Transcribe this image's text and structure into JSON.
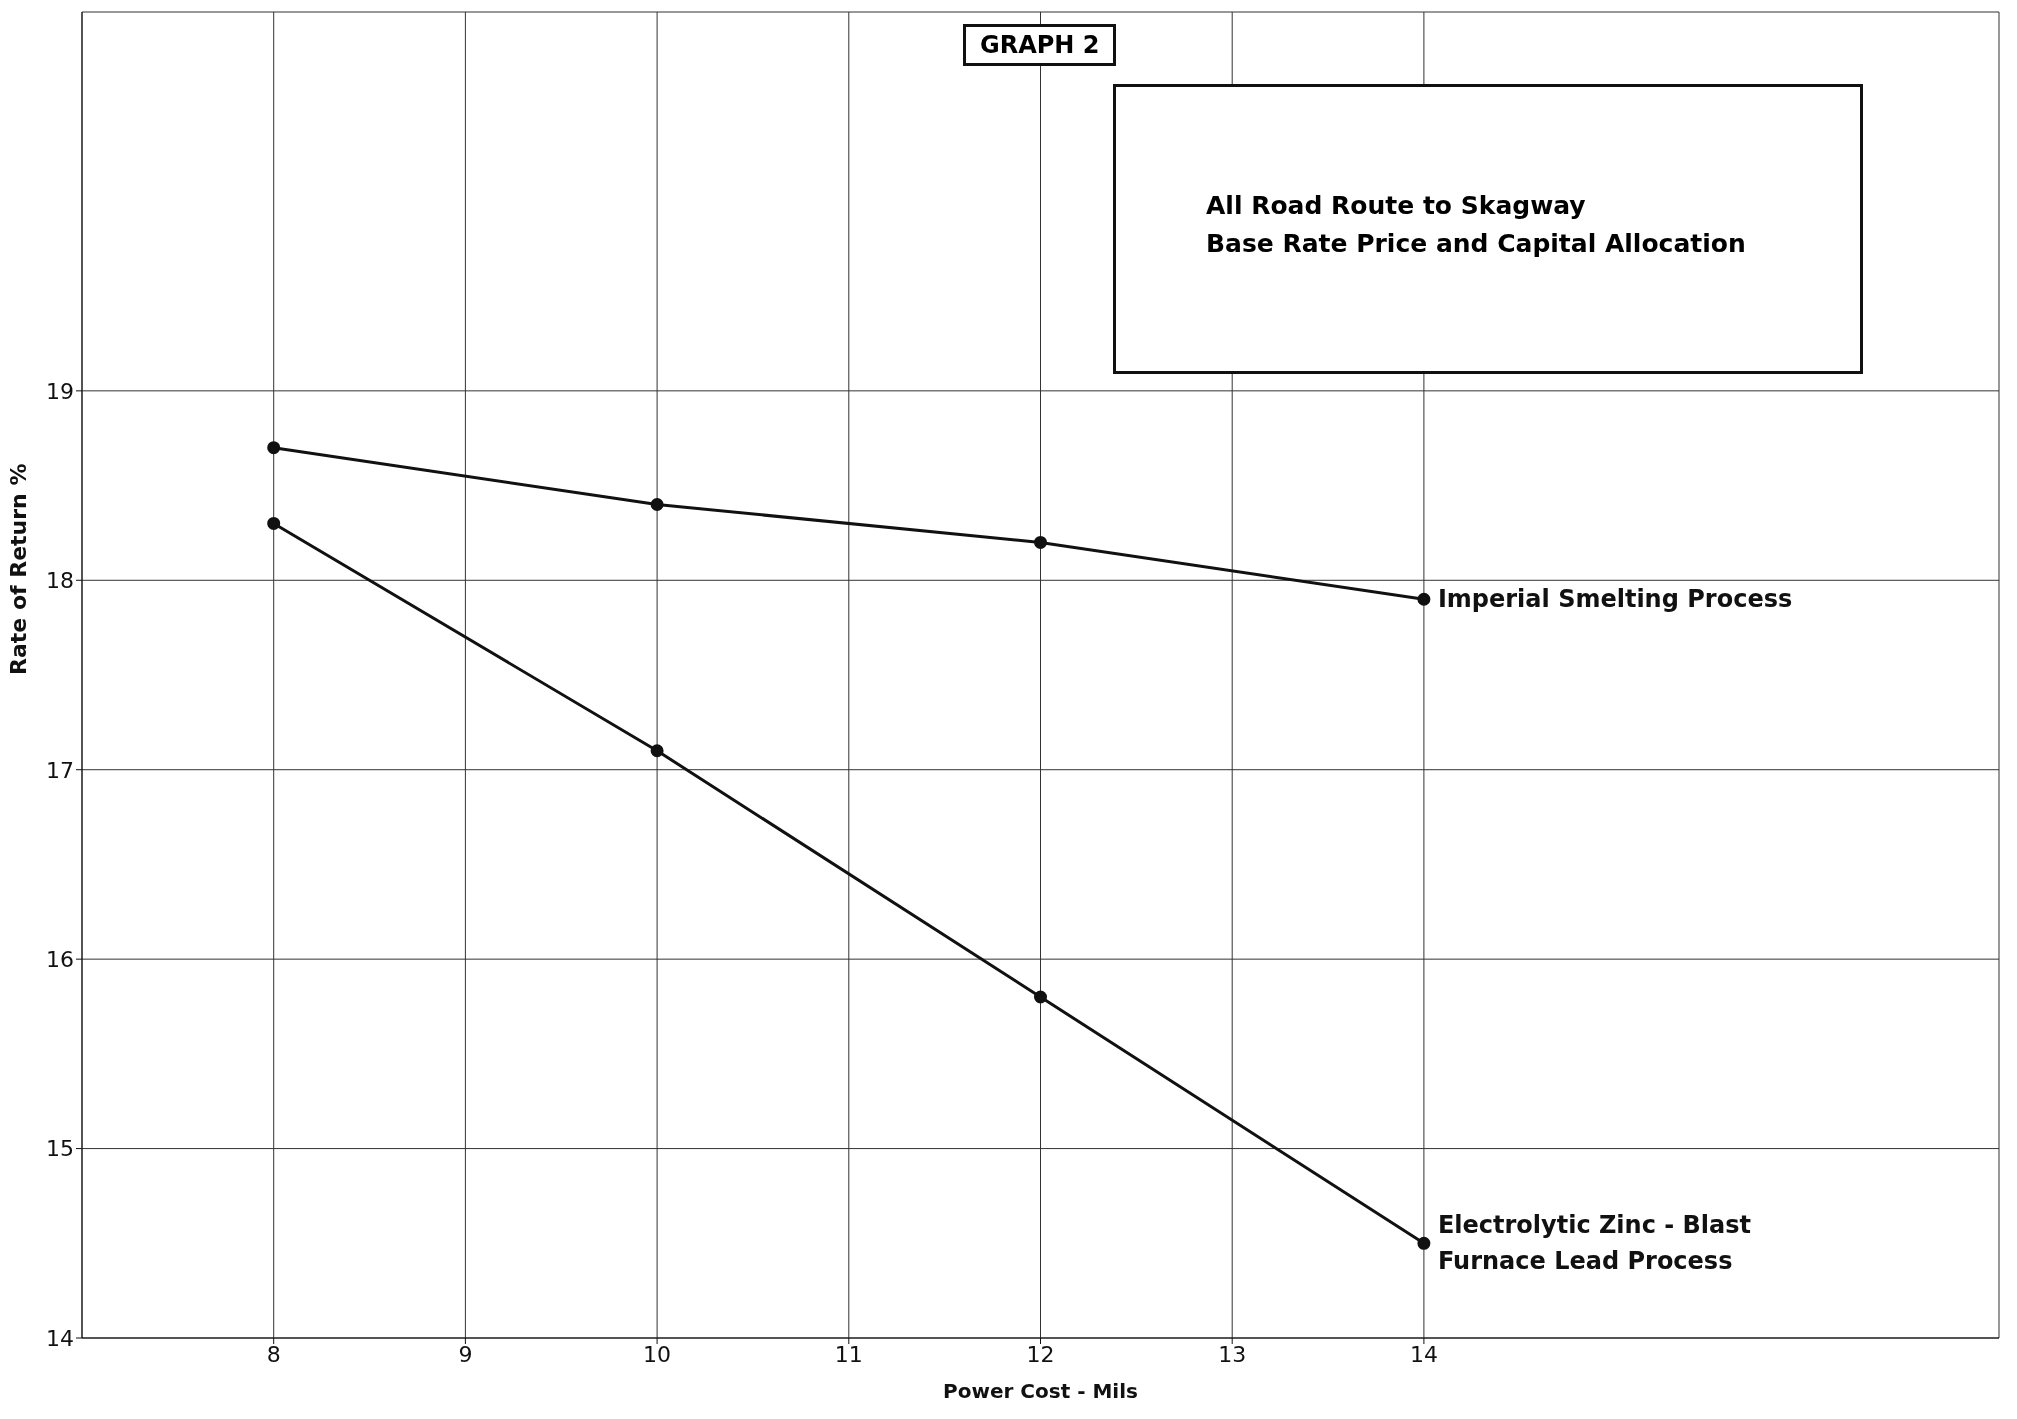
{
  "chart_data": {
    "type": "line",
    "title": "GRAPH 2",
    "xlabel": "Power Cost - Mils",
    "ylabel": "Rate of Return %",
    "annotations": [
      "All Road Route to Skagway",
      "Base Rate Price and Capital Allocation"
    ],
    "x": [
      8,
      10,
      12,
      14
    ],
    "series": [
      {
        "name": "Imperial Smelting Process",
        "color": "#111111",
        "values": [
          18.7,
          18.4,
          18.2,
          17.9
        ]
      },
      {
        "name": "Electrolytic Zinc - Blast Furnace Lead Process",
        "color": "#111111",
        "values": [
          18.3,
          17.1,
          15.8,
          14.5
        ]
      }
    ],
    "xlim": [
      7,
      17
    ],
    "xticks": [
      8,
      9,
      10,
      11,
      12,
      13,
      14
    ],
    "ylim": [
      14,
      21
    ],
    "yticks": [
      14,
      15,
      16,
      17,
      18,
      19
    ],
    "grid": true,
    "marker": "circle",
    "line_style": "solid"
  }
}
